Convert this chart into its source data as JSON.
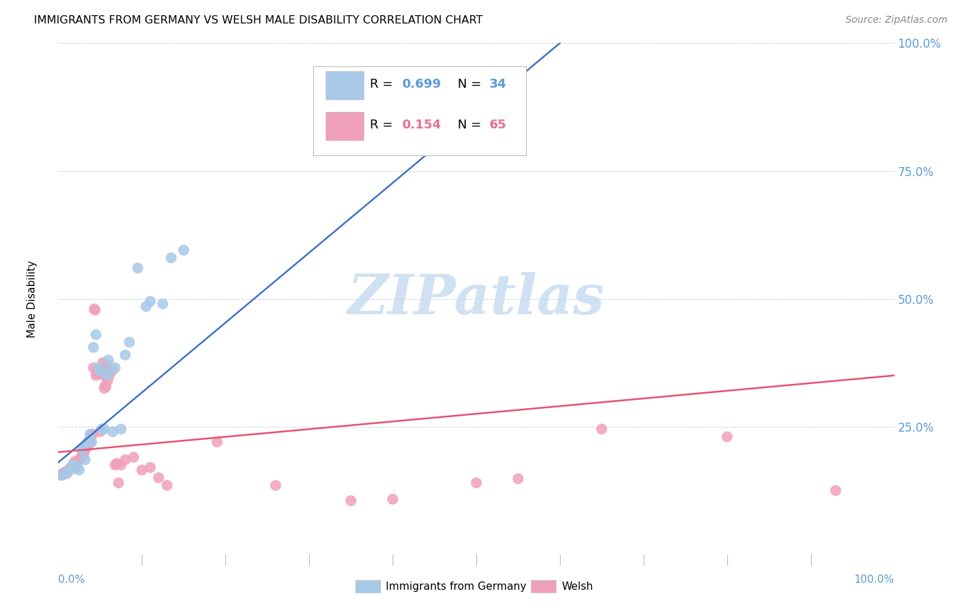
{
  "title": "IMMIGRANTS FROM GERMANY VS WELSH MALE DISABILITY CORRELATION CHART",
  "source": "Source: ZipAtlas.com",
  "ylabel": "Male Disability",
  "color_blue": "#A8C8E8",
  "color_pink": "#F0A0B8",
  "color_blue_line": "#4472C4",
  "color_pink_line": "#E85070",
  "color_blue_text": "#5B9BD5",
  "color_pink_text": "#E87090",
  "color_grid": "#C8D8E8",
  "watermark_color": "#C8DCF0",
  "blue_scatter": [
    [
      0.5,
      15.5
    ],
    [
      0.8,
      16.0
    ],
    [
      1.2,
      16.2
    ],
    [
      1.5,
      17.0
    ],
    [
      1.7,
      17.5
    ],
    [
      2.0,
      16.8
    ],
    [
      2.2,
      17.2
    ],
    [
      2.5,
      16.5
    ],
    [
      2.8,
      20.5
    ],
    [
      3.0,
      21.0
    ],
    [
      3.2,
      18.5
    ],
    [
      3.5,
      22.0
    ],
    [
      3.8,
      23.5
    ],
    [
      4.0,
      22.0
    ],
    [
      4.2,
      40.5
    ],
    [
      4.5,
      43.0
    ],
    [
      4.8,
      36.5
    ],
    [
      5.0,
      36.0
    ],
    [
      5.2,
      24.5
    ],
    [
      5.5,
      24.5
    ],
    [
      5.8,
      35.0
    ],
    [
      6.0,
      38.0
    ],
    [
      6.2,
      36.0
    ],
    [
      6.5,
      24.0
    ],
    [
      6.8,
      36.5
    ],
    [
      7.5,
      24.5
    ],
    [
      8.0,
      39.0
    ],
    [
      8.5,
      41.5
    ],
    [
      9.5,
      56.0
    ],
    [
      10.5,
      48.5
    ],
    [
      11.0,
      49.5
    ],
    [
      12.5,
      49.0
    ],
    [
      13.5,
      58.0
    ],
    [
      15.0,
      59.5
    ]
  ],
  "pink_scatter": [
    [
      0.3,
      15.5
    ],
    [
      0.5,
      15.8
    ],
    [
      0.7,
      16.0
    ],
    [
      0.9,
      16.2
    ],
    [
      1.0,
      15.8
    ],
    [
      1.2,
      16.5
    ],
    [
      1.4,
      16.8
    ],
    [
      1.6,
      17.2
    ],
    [
      1.8,
      17.0
    ],
    [
      2.0,
      18.2
    ],
    [
      2.1,
      17.8
    ],
    [
      2.3,
      18.0
    ],
    [
      2.5,
      18.5
    ],
    [
      2.7,
      19.0
    ],
    [
      2.9,
      19.2
    ],
    [
      3.0,
      19.5
    ],
    [
      3.1,
      20.0
    ],
    [
      3.2,
      20.5
    ],
    [
      3.3,
      21.0
    ],
    [
      3.4,
      21.5
    ],
    [
      3.5,
      21.0
    ],
    [
      3.6,
      21.5
    ],
    [
      3.7,
      22.0
    ],
    [
      3.8,
      22.0
    ],
    [
      3.9,
      23.0
    ],
    [
      4.0,
      23.5
    ],
    [
      4.1,
      23.5
    ],
    [
      4.2,
      36.5
    ],
    [
      4.3,
      48.0
    ],
    [
      4.4,
      47.8
    ],
    [
      4.5,
      35.0
    ],
    [
      4.6,
      35.5
    ],
    [
      4.7,
      36.0
    ],
    [
      4.8,
      35.5
    ],
    [
      5.0,
      24.0
    ],
    [
      5.2,
      36.5
    ],
    [
      5.3,
      37.5
    ],
    [
      5.4,
      35.0
    ],
    [
      5.5,
      32.5
    ],
    [
      5.6,
      33.0
    ],
    [
      5.7,
      32.8
    ],
    [
      5.8,
      37.0
    ],
    [
      5.9,
      34.0
    ],
    [
      6.0,
      36.5
    ],
    [
      6.1,
      35.0
    ],
    [
      6.5,
      36.0
    ],
    [
      6.8,
      17.5
    ],
    [
      7.0,
      17.8
    ],
    [
      7.2,
      14.0
    ],
    [
      7.5,
      17.5
    ],
    [
      8.0,
      18.5
    ],
    [
      9.0,
      19.0
    ],
    [
      10.0,
      16.5
    ],
    [
      11.0,
      17.0
    ],
    [
      12.0,
      15.0
    ],
    [
      13.0,
      13.5
    ],
    [
      19.0,
      22.0
    ],
    [
      26.0,
      13.5
    ],
    [
      35.0,
      10.5
    ],
    [
      40.0,
      10.8
    ],
    [
      50.0,
      14.0
    ],
    [
      55.0,
      14.8
    ],
    [
      65.0,
      24.5
    ],
    [
      80.0,
      23.0
    ],
    [
      93.0,
      12.5
    ]
  ],
  "xlim": [
    0,
    100
  ],
  "ylim": [
    0,
    100
  ],
  "blue_line": [
    [
      0,
      18
    ],
    [
      60,
      100
    ]
  ],
  "pink_line": [
    [
      0,
      20
    ],
    [
      100,
      35
    ]
  ]
}
